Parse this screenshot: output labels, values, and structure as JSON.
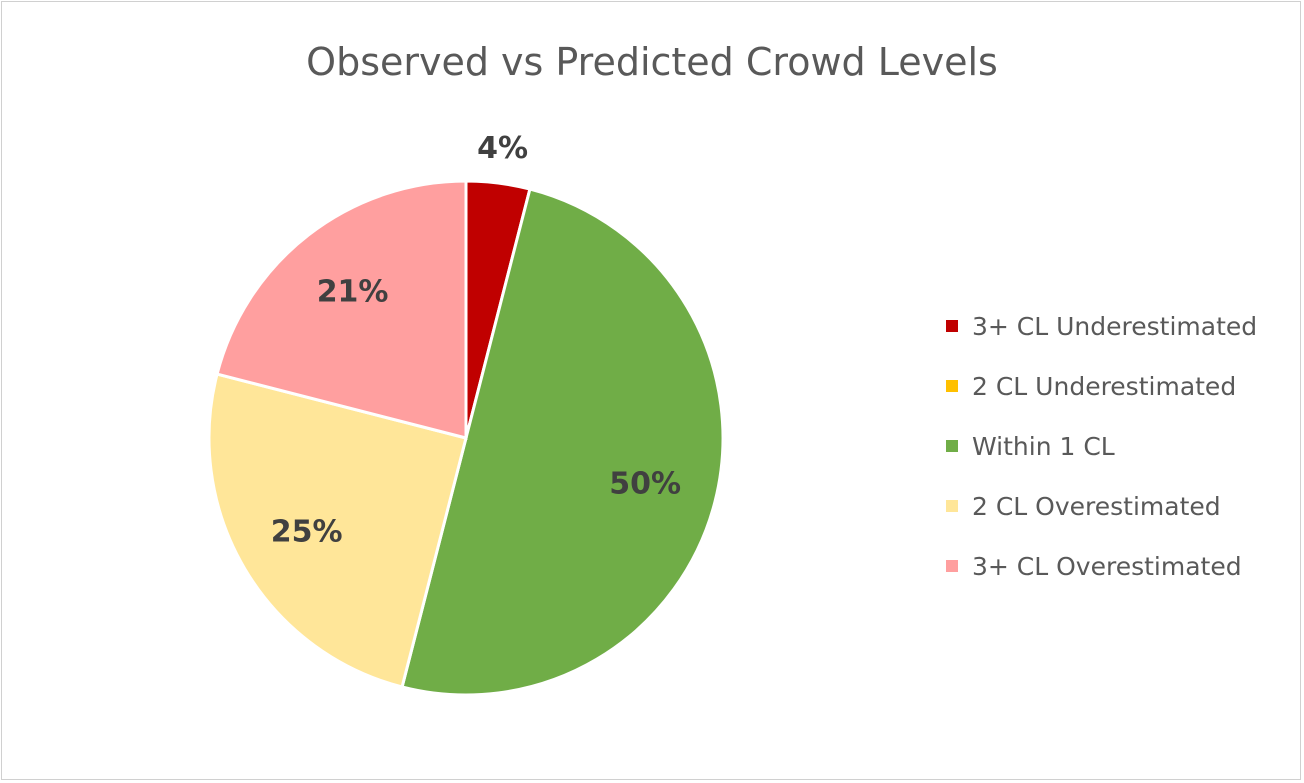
{
  "chart_data": {
    "type": "pie",
    "title": "Observed vs Predicted Crowd Levels",
    "categories": [
      "3+ CL Underestimated",
      "2 CL Underestimated",
      "Within 1 CL",
      "2 CL Overestimated",
      "3+ CL Overestimated"
    ],
    "values": [
      4,
      0,
      50,
      25,
      21
    ],
    "labels": [
      "4%",
      "",
      "50%",
      "25%",
      "21%"
    ],
    "colors": [
      "#c00000",
      "#ffc000",
      "#70ad47",
      "#ffe699",
      "#ff9f9f"
    ],
    "legend": "right"
  }
}
